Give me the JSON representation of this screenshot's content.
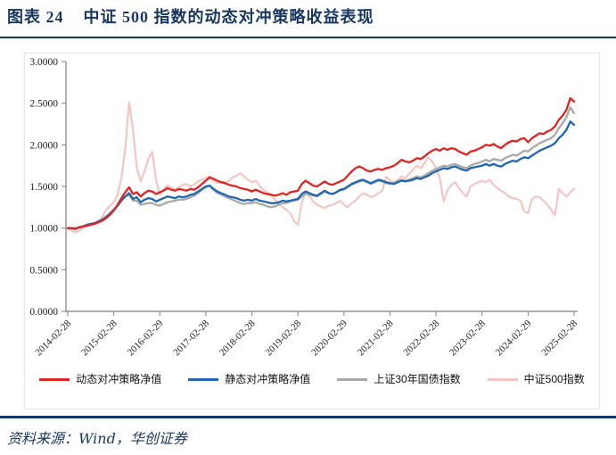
{
  "figure": {
    "label": "图表 24",
    "title": "中证 500 指数的动态对冲策略收益表现",
    "source_label": "资料来源：Wind，华创证券"
  },
  "colors": {
    "accent_navy": "#17375E",
    "dynamic_hedge_red": "#E02422",
    "static_hedge_blue": "#2166AE",
    "treasury_gray": "#A9A9A9",
    "csi500_pink": "#F2C4C2",
    "axis": "#7f7f7f",
    "tick_text": "#1a1a1a"
  },
  "chart_data": {
    "type": "line",
    "title": "",
    "xlabel": "",
    "ylabel": "",
    "grid": false,
    "legend_position": "bottom",
    "ylim": [
      0.0,
      3.0
    ],
    "y_tick_labels": [
      "0.0000",
      "0.5000",
      "1.0000",
      "1.5000",
      "2.0000",
      "2.5000",
      "3.0000"
    ],
    "y_tick_values": [
      0.0,
      0.5,
      1.0,
      1.5,
      2.0,
      2.5,
      3.0
    ],
    "x_tick_labels": [
      "2014-02-28",
      "2015-02-28",
      "2016-02-29",
      "2017-02-28",
      "2018-02-28",
      "2019-02-28",
      "2020-02-29",
      "2021-02-28",
      "2022-02-28",
      "2023-02-28",
      "2024-02-29",
      "2025-02-28"
    ],
    "x_unit": "monthly net values, 2014-02 to 2025-02 (133 points, one tick per year)",
    "series": [
      {
        "name": "动态对冲策略净值",
        "color": "#E02422",
        "width": 2.3,
        "values": [
          1.0,
          1.0,
          0.99,
          1.01,
          1.02,
          1.03,
          1.04,
          1.05,
          1.07,
          1.09,
          1.12,
          1.16,
          1.21,
          1.28,
          1.36,
          1.43,
          1.49,
          1.41,
          1.43,
          1.38,
          1.42,
          1.45,
          1.44,
          1.41,
          1.43,
          1.45,
          1.48,
          1.46,
          1.45,
          1.47,
          1.46,
          1.45,
          1.47,
          1.46,
          1.49,
          1.53,
          1.57,
          1.61,
          1.59,
          1.57,
          1.55,
          1.54,
          1.52,
          1.51,
          1.5,
          1.48,
          1.47,
          1.46,
          1.44,
          1.46,
          1.44,
          1.42,
          1.41,
          1.4,
          1.39,
          1.4,
          1.42,
          1.4,
          1.43,
          1.44,
          1.45,
          1.53,
          1.57,
          1.54,
          1.51,
          1.5,
          1.53,
          1.56,
          1.53,
          1.52,
          1.54,
          1.56,
          1.58,
          1.63,
          1.68,
          1.72,
          1.74,
          1.72,
          1.69,
          1.68,
          1.7,
          1.71,
          1.7,
          1.72,
          1.73,
          1.75,
          1.78,
          1.82,
          1.8,
          1.79,
          1.81,
          1.84,
          1.83,
          1.86,
          1.9,
          1.93,
          1.95,
          1.93,
          1.96,
          1.94,
          1.96,
          1.95,
          1.92,
          1.9,
          1.88,
          1.92,
          1.93,
          1.95,
          1.97,
          2.0,
          1.99,
          2.01,
          1.98,
          1.96,
          2.0,
          2.03,
          2.05,
          2.04,
          2.07,
          2.08,
          2.03,
          2.08,
          2.11,
          2.14,
          2.13,
          2.16,
          2.18,
          2.22,
          2.3,
          2.35,
          2.42,
          2.56,
          2.52
        ]
      },
      {
        "name": "静态对冲策略净值",
        "color": "#2166AE",
        "width": 2.3,
        "values": [
          1.0,
          1.0,
          0.99,
          1.01,
          1.02,
          1.04,
          1.05,
          1.06,
          1.08,
          1.1,
          1.13,
          1.17,
          1.22,
          1.27,
          1.33,
          1.38,
          1.42,
          1.35,
          1.37,
          1.31,
          1.34,
          1.36,
          1.35,
          1.32,
          1.34,
          1.36,
          1.38,
          1.37,
          1.36,
          1.38,
          1.37,
          1.38,
          1.4,
          1.41,
          1.44,
          1.47,
          1.5,
          1.51,
          1.47,
          1.44,
          1.42,
          1.4,
          1.38,
          1.37,
          1.36,
          1.34,
          1.33,
          1.34,
          1.33,
          1.35,
          1.33,
          1.32,
          1.31,
          1.3,
          1.3,
          1.31,
          1.33,
          1.32,
          1.33,
          1.34,
          1.35,
          1.41,
          1.44,
          1.42,
          1.4,
          1.39,
          1.42,
          1.45,
          1.42,
          1.41,
          1.43,
          1.46,
          1.47,
          1.5,
          1.53,
          1.55,
          1.57,
          1.58,
          1.56,
          1.54,
          1.56,
          1.58,
          1.57,
          1.55,
          1.54,
          1.53,
          1.55,
          1.57,
          1.56,
          1.57,
          1.58,
          1.6,
          1.59,
          1.61,
          1.63,
          1.66,
          1.68,
          1.7,
          1.72,
          1.71,
          1.73,
          1.74,
          1.72,
          1.7,
          1.69,
          1.72,
          1.73,
          1.74,
          1.75,
          1.77,
          1.75,
          1.77,
          1.75,
          1.74,
          1.77,
          1.79,
          1.81,
          1.8,
          1.83,
          1.85,
          1.84,
          1.87,
          1.9,
          1.93,
          1.95,
          1.97,
          1.99,
          2.02,
          2.08,
          2.12,
          2.18,
          2.28,
          2.24
        ]
      },
      {
        "name": "上证30年国债指数",
        "color": "#A9A9A9",
        "width": 2.3,
        "values": [
          1.0,
          1.0,
          1.0,
          1.01,
          1.02,
          1.03,
          1.04,
          1.05,
          1.07,
          1.1,
          1.14,
          1.18,
          1.22,
          1.27,
          1.33,
          1.38,
          1.4,
          1.33,
          1.33,
          1.28,
          1.29,
          1.3,
          1.3,
          1.28,
          1.27,
          1.29,
          1.31,
          1.32,
          1.33,
          1.34,
          1.34,
          1.35,
          1.37,
          1.39,
          1.42,
          1.46,
          1.49,
          1.51,
          1.46,
          1.42,
          1.4,
          1.38,
          1.36,
          1.34,
          1.32,
          1.3,
          1.29,
          1.3,
          1.3,
          1.31,
          1.29,
          1.28,
          1.26,
          1.25,
          1.26,
          1.28,
          1.3,
          1.3,
          1.32,
          1.33,
          1.34,
          1.38,
          1.41,
          1.4,
          1.39,
          1.38,
          1.41,
          1.44,
          1.42,
          1.41,
          1.43,
          1.45,
          1.46,
          1.49,
          1.52,
          1.54,
          1.56,
          1.57,
          1.55,
          1.53,
          1.55,
          1.57,
          1.56,
          1.54,
          1.53,
          1.54,
          1.56,
          1.58,
          1.57,
          1.58,
          1.6,
          1.62,
          1.61,
          1.63,
          1.66,
          1.69,
          1.71,
          1.73,
          1.75,
          1.74,
          1.76,
          1.77,
          1.75,
          1.73,
          1.72,
          1.75,
          1.77,
          1.78,
          1.8,
          1.82,
          1.8,
          1.83,
          1.82,
          1.81,
          1.84,
          1.86,
          1.88,
          1.87,
          1.9,
          1.93,
          1.92,
          1.96,
          1.99,
          2.02,
          2.04,
          2.06,
          2.08,
          2.12,
          2.2,
          2.26,
          2.33,
          2.45,
          2.38
        ]
      },
      {
        "name": "中证500指数",
        "color": "#F2C4C2",
        "width": 2.1,
        "values": [
          1.0,
          0.97,
          0.95,
          0.97,
          1.0,
          1.02,
          1.04,
          1.05,
          1.08,
          1.13,
          1.22,
          1.27,
          1.31,
          1.4,
          1.6,
          1.95,
          2.51,
          2.18,
          1.72,
          1.56,
          1.68,
          1.83,
          1.92,
          1.58,
          1.4,
          1.47,
          1.51,
          1.49,
          1.46,
          1.49,
          1.52,
          1.53,
          1.5,
          1.53,
          1.56,
          1.58,
          1.6,
          1.62,
          1.57,
          1.54,
          1.56,
          1.55,
          1.57,
          1.61,
          1.63,
          1.66,
          1.62,
          1.58,
          1.55,
          1.57,
          1.51,
          1.46,
          1.43,
          1.4,
          1.34,
          1.29,
          1.25,
          1.22,
          1.18,
          1.08,
          1.04,
          1.3,
          1.43,
          1.38,
          1.32,
          1.28,
          1.26,
          1.24,
          1.27,
          1.28,
          1.3,
          1.33,
          1.28,
          1.25,
          1.3,
          1.33,
          1.38,
          1.42,
          1.4,
          1.37,
          1.39,
          1.42,
          1.45,
          1.62,
          1.57,
          1.55,
          1.58,
          1.62,
          1.6,
          1.65,
          1.7,
          1.75,
          1.72,
          1.78,
          1.85,
          1.8,
          1.72,
          1.6,
          1.32,
          1.45,
          1.52,
          1.55,
          1.48,
          1.42,
          1.38,
          1.5,
          1.53,
          1.55,
          1.57,
          1.55,
          1.58,
          1.52,
          1.48,
          1.45,
          1.42,
          1.38,
          1.36,
          1.35,
          1.33,
          1.2,
          1.18,
          1.35,
          1.38,
          1.37,
          1.33,
          1.28,
          1.22,
          1.15,
          1.47,
          1.42,
          1.38,
          1.43,
          1.47
        ]
      }
    ]
  }
}
